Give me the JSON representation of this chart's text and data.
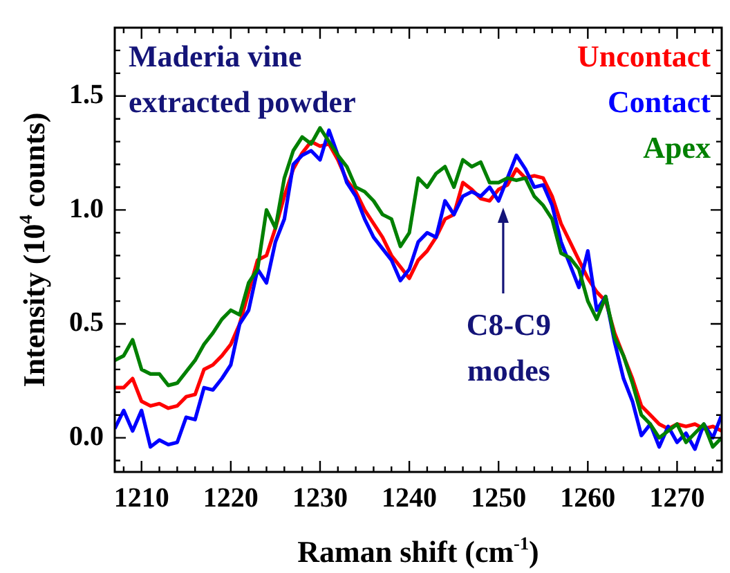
{
  "chart_data": {
    "type": "line",
    "xlabel": "Raman shift (cm$^{-1}$)",
    "ylabel": "Intensity (10$^{4}$ counts)",
    "x": [
      1207,
      1208,
      1209,
      1210,
      1211,
      1212,
      1213,
      1214,
      1215,
      1216,
      1217,
      1218,
      1219,
      1220,
      1221,
      1222,
      1223,
      1224,
      1225,
      1226,
      1227,
      1228,
      1229,
      1230,
      1231,
      1232,
      1233,
      1234,
      1235,
      1236,
      1237,
      1238,
      1239,
      1240,
      1241,
      1242,
      1243,
      1244,
      1245,
      1246,
      1247,
      1248,
      1249,
      1250,
      1251,
      1252,
      1253,
      1254,
      1255,
      1256,
      1257,
      1258,
      1259,
      1260,
      1261,
      1262,
      1263,
      1264,
      1265,
      1266,
      1267,
      1268,
      1269,
      1270,
      1271,
      1272,
      1273,
      1274,
      1275
    ],
    "series": [
      {
        "name": "Uncontact",
        "color": "#ff0000",
        "values": [
          0.22,
          0.22,
          0.26,
          0.16,
          0.14,
          0.15,
          0.13,
          0.14,
          0.18,
          0.19,
          0.3,
          0.32,
          0.36,
          0.41,
          0.5,
          0.64,
          0.78,
          0.8,
          0.92,
          1.06,
          1.18,
          1.25,
          1.3,
          1.28,
          1.29,
          1.22,
          1.13,
          1.08,
          1.0,
          0.94,
          0.88,
          0.8,
          0.75,
          0.7,
          0.78,
          0.82,
          0.88,
          0.96,
          0.98,
          1.12,
          1.09,
          1.05,
          1.04,
          1.09,
          1.11,
          1.18,
          1.14,
          1.15,
          1.14,
          1.06,
          0.94,
          0.86,
          0.78,
          0.7,
          0.64,
          0.6,
          0.46,
          0.36,
          0.26,
          0.14,
          0.1,
          0.06,
          0.04,
          0.06,
          0.05,
          0.06,
          0.04,
          0.05,
          0.03
        ]
      },
      {
        "name": "Contact",
        "color": "#0000ff",
        "values": [
          0.04,
          0.12,
          0.03,
          0.12,
          -0.04,
          -0.01,
          -0.03,
          -0.02,
          0.09,
          0.08,
          0.22,
          0.21,
          0.26,
          0.32,
          0.5,
          0.56,
          0.74,
          0.68,
          0.86,
          0.96,
          1.2,
          1.24,
          1.26,
          1.22,
          1.35,
          1.24,
          1.12,
          1.06,
          0.96,
          0.88,
          0.83,
          0.78,
          0.69,
          0.74,
          0.86,
          0.9,
          0.88,
          1.04,
          0.98,
          1.06,
          1.08,
          1.06,
          1.1,
          1.04,
          1.14,
          1.24,
          1.18,
          1.1,
          1.11,
          1.02,
          0.86,
          0.76,
          0.66,
          0.82,
          0.56,
          0.62,
          0.42,
          0.26,
          0.16,
          0.01,
          0.06,
          -0.04,
          0.05,
          -0.02,
          0.02,
          -0.05,
          0.06,
          0.0,
          0.1
        ]
      },
      {
        "name": "Apex",
        "color": "#008000",
        "values": [
          0.34,
          0.36,
          0.43,
          0.3,
          0.28,
          0.28,
          0.23,
          0.24,
          0.29,
          0.34,
          0.41,
          0.46,
          0.52,
          0.56,
          0.54,
          0.68,
          0.74,
          1.0,
          0.92,
          1.14,
          1.26,
          1.32,
          1.29,
          1.36,
          1.3,
          1.24,
          1.19,
          1.1,
          1.08,
          1.04,
          0.98,
          0.96,
          0.84,
          0.9,
          1.14,
          1.1,
          1.16,
          1.19,
          1.1,
          1.22,
          1.19,
          1.21,
          1.12,
          1.12,
          1.14,
          1.13,
          1.14,
          1.06,
          1.02,
          0.96,
          0.81,
          0.79,
          0.74,
          0.6,
          0.52,
          0.62,
          0.44,
          0.36,
          0.24,
          0.1,
          0.06,
          0.0,
          0.03,
          0.06,
          -0.02,
          0.02,
          0.06,
          -0.04,
          0.0
        ]
      }
    ],
    "xlim": [
      1207,
      1275
    ],
    "ylim": [
      -0.15,
      1.8
    ],
    "xticks": [
      {
        "value": 1208,
        "label": null
      },
      1210,
      {
        "value": 1212,
        "label": null
      },
      {
        "value": 1214,
        "label": null
      },
      {
        "value": 1216,
        "label": null
      },
      {
        "value": 1218,
        "label": null
      },
      1220,
      {
        "value": 1222,
        "label": null
      },
      {
        "value": 1224,
        "label": null
      },
      {
        "value": 1226,
        "label": null
      },
      {
        "value": 1228,
        "label": null
      },
      1230,
      {
        "value": 1232,
        "label": null
      },
      {
        "value": 1234,
        "label": null
      },
      {
        "value": 1236,
        "label": null
      },
      {
        "value": 1238,
        "label": null
      },
      1240,
      {
        "value": 1242,
        "label": null
      },
      {
        "value": 1244,
        "label": null
      },
      {
        "value": 1246,
        "label": null
      },
      {
        "value": 1248,
        "label": null
      },
      1250,
      {
        "value": 1252,
        "label": null
      },
      {
        "value": 1254,
        "label": null
      },
      {
        "value": 1256,
        "label": null
      },
      {
        "value": 1258,
        "label": null
      },
      1260,
      {
        "value": 1262,
        "label": null
      },
      {
        "value": 1264,
        "label": null
      },
      {
        "value": 1266,
        "label": null
      },
      {
        "value": 1268,
        "label": null
      },
      1270,
      {
        "value": 1272,
        "label": null
      },
      {
        "value": 1274,
        "label": null
      }
    ],
    "yticks": [
      {
        "value": -0.1,
        "label": null
      },
      {
        "value": 0,
        "label": "0.0"
      },
      {
        "value": 0.1,
        "label": null
      },
      {
        "value": 0.2,
        "label": null
      },
      {
        "value": 0.3,
        "label": null
      },
      {
        "value": 0.4,
        "label": null
      },
      {
        "value": 0.5,
        "label": "0.5"
      },
      {
        "value": 0.6,
        "label": null
      },
      {
        "value": 0.7,
        "label": null
      },
      {
        "value": 0.8,
        "label": null
      },
      {
        "value": 0.9,
        "label": null
      },
      {
        "value": 1.0,
        "label": "1.0"
      },
      {
        "value": 1.1,
        "label": null
      },
      {
        "value": 1.2,
        "label": null
      },
      {
        "value": 1.3,
        "label": null
      },
      {
        "value": 1.4,
        "label": null
      },
      {
        "value": 1.5,
        "label": "1.5"
      },
      {
        "value": 1.6,
        "label": null
      },
      {
        "value": 1.7,
        "label": null
      }
    ],
    "annotations": [
      "Maderia vine extracted powder",
      "C8-C9 modes"
    ],
    "legend": "top right",
    "marker": "none",
    "line_style": "solid"
  }
}
